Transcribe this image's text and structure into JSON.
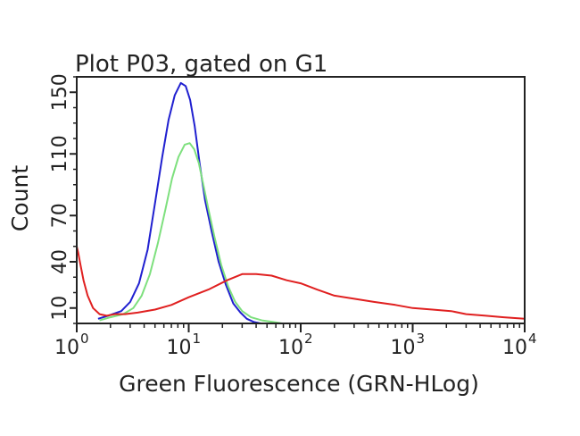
{
  "chart_data": {
    "type": "line",
    "title": "Plot P03, gated on G1",
    "xlabel": "Green Fluorescence (GRN-HLog)",
    "ylabel": "Count",
    "x_scale": "log",
    "xlim": [
      1,
      10000
    ],
    "ylim": [
      0,
      160
    ],
    "x_ticks": [
      {
        "base": "10",
        "exp": "0",
        "value": 1
      },
      {
        "base": "10",
        "exp": "1",
        "value": 10
      },
      {
        "base": "10",
        "exp": "2",
        "value": 100
      },
      {
        "base": "10",
        "exp": "3",
        "value": 1000
      },
      {
        "base": "10",
        "exp": "4",
        "value": 10000
      }
    ],
    "y_ticks": [
      "10",
      "40",
      "70",
      "110",
      "150"
    ],
    "y_tick_values": [
      10,
      40,
      70,
      110,
      150
    ],
    "grid": false,
    "series": [
      {
        "color": "#2020d0",
        "x": [
          1.55,
          1.9,
          2.5,
          3.0,
          3.6,
          4.3,
          5.0,
          5.8,
          6.6,
          7.5,
          8.5,
          9.4,
          10.3,
          11.3,
          12.5,
          14.0,
          16.0,
          18.5,
          21.5,
          25.0,
          29.0,
          33.0,
          38.0,
          44.0
        ],
        "y": [
          3,
          5,
          8,
          14,
          26,
          48,
          78,
          108,
          132,
          148,
          156,
          154,
          145,
          128,
          104,
          80,
          60,
          40,
          25,
          13,
          7,
          3,
          1,
          0
        ]
      },
      {
        "color": "#7ee07e",
        "x": [
          1.6,
          2.0,
          2.6,
          3.2,
          3.8,
          4.5,
          5.3,
          6.2,
          7.1,
          8.1,
          9.2,
          10.2,
          11.2,
          12.3,
          13.5,
          15.0,
          17.0,
          19.5,
          22.5,
          26.0,
          30.0,
          36.0,
          45.0,
          56.0,
          68.0
        ],
        "y": [
          2,
          4,
          6,
          10,
          18,
          32,
          52,
          74,
          94,
          108,
          116,
          117,
          113,
          104,
          90,
          74,
          56,
          38,
          24,
          14,
          8,
          4,
          2,
          1,
          0
        ]
      },
      {
        "color": "#e02020",
        "x": [
          1.0,
          1.03,
          1.08,
          1.15,
          1.25,
          1.4,
          1.6,
          1.85,
          2.2,
          2.7,
          3.5,
          5.0,
          7.0,
          10.0,
          15.0,
          22.0,
          30.0,
          40.0,
          55.0,
          75.0,
          100.0,
          140.0,
          200.0,
          300.0,
          450.0,
          700.0,
          1000.0,
          1500.0,
          2200.0,
          3000.0,
          4500.0,
          6500.0,
          10000.0
        ],
        "y": [
          50,
          46,
          38,
          28,
          18,
          10,
          6,
          5,
          6,
          6,
          7,
          9,
          12,
          17,
          22,
          28,
          32,
          32,
          31,
          28,
          26,
          22,
          18,
          16,
          14,
          12,
          10,
          9,
          8,
          6,
          5,
          4,
          3
        ]
      }
    ]
  }
}
